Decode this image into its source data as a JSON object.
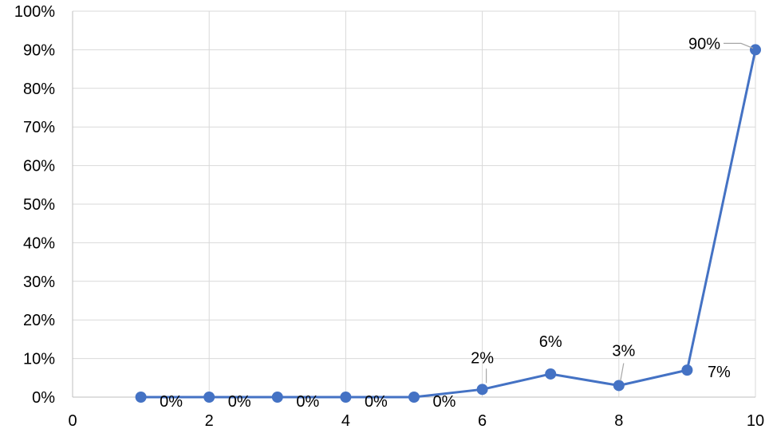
{
  "chart_data": {
    "type": "scatter",
    "title": "",
    "xlabel": "",
    "ylabel": "",
    "xlim": [
      0,
      10
    ],
    "ylim": [
      0,
      100
    ],
    "x_ticks": [
      0,
      2,
      4,
      6,
      8,
      10
    ],
    "y_ticks": [
      0,
      10,
      20,
      30,
      40,
      50,
      60,
      70,
      80,
      90,
      100
    ],
    "x_tick_labels": [
      "0",
      "2",
      "4",
      "6",
      "8",
      "10"
    ],
    "y_tick_labels": [
      "0%",
      "10%",
      "20%",
      "30%",
      "40%",
      "50%",
      "60%",
      "70%",
      "80%",
      "90%",
      "100%"
    ],
    "grid": true,
    "legend": "none",
    "series": [
      {
        "color": "#4472c4",
        "x": [
          1,
          2,
          3,
          4,
          5,
          6,
          7,
          8,
          9,
          10
        ],
        "y": [
          0,
          0,
          0,
          0,
          0,
          2,
          6,
          3,
          7,
          90
        ],
        "labels": [
          "0%",
          "0%",
          "0%",
          "0%",
          "0%",
          "2%",
          "6%",
          "3%",
          "7%",
          "90%"
        ]
      }
    ]
  }
}
